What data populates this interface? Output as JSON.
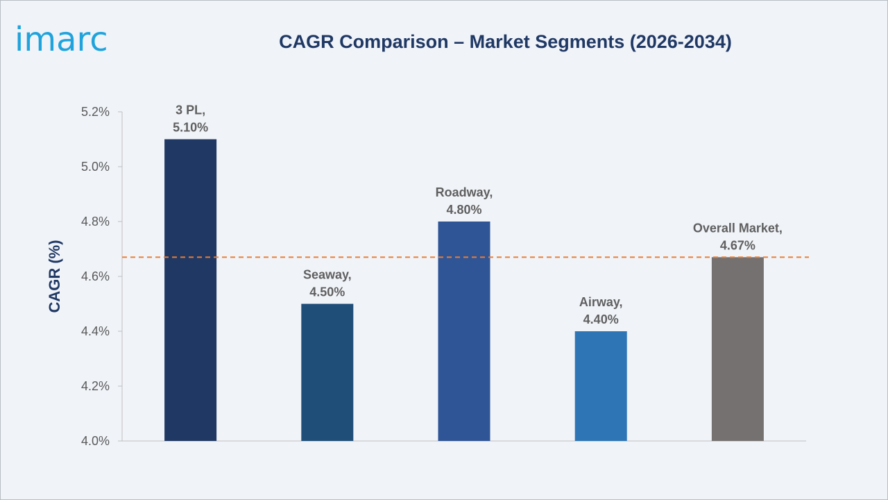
{
  "brand": {
    "logo_text": "imarc",
    "logo_color": "#1fa3dc"
  },
  "chart_data": {
    "type": "bar",
    "title": "CAGR Comparison – Market Segments (2026-2034)",
    "xlabel": "",
    "ylabel": "CAGR (%)",
    "ylim": [
      4.0,
      5.2
    ],
    "yticks": [
      4.0,
      4.2,
      4.4,
      4.6,
      4.8,
      5.0,
      5.2
    ],
    "ytick_labels": [
      "4.0%",
      "4.2%",
      "4.4%",
      "4.6%",
      "4.8%",
      "5.0%",
      "5.2%"
    ],
    "categories": [
      "3 PL",
      "Seaway",
      "Roadway",
      "Airway",
      "Overall Market"
    ],
    "values": [
      5.1,
      4.5,
      4.8,
      4.4,
      4.67
    ],
    "value_labels": [
      "5.10%",
      "4.50%",
      "4.80%",
      "4.40%",
      "4.67%"
    ],
    "category_labels": [
      "3 PL,",
      "Seaway,",
      "Roadway,",
      "Airway,",
      "Overall Market,"
    ],
    "colors": [
      "#203864",
      "#1f4e79",
      "#2f5597",
      "#2e75b6",
      "#767171"
    ],
    "reference_line": {
      "value": 4.67,
      "style": "dashed",
      "color": "#ed7d31"
    },
    "grid": false,
    "legend": "none"
  }
}
